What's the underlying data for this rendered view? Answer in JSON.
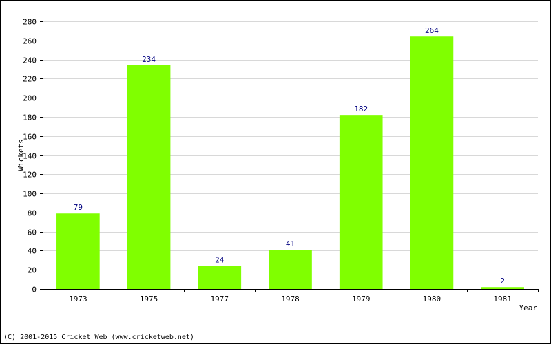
{
  "chart_data": {
    "type": "bar",
    "categories": [
      "1973",
      "1975",
      "1977",
      "1978",
      "1979",
      "1980",
      "1981"
    ],
    "values": [
      79,
      234,
      24,
      41,
      182,
      264,
      2
    ],
    "data_labels": [
      "79",
      "234",
      "24",
      "41",
      "182",
      "264",
      "2"
    ],
    "title": "",
    "xlabel": "Year",
    "ylabel": "Wickets",
    "ylim": [
      0,
      280
    ],
    "yticks": [
      "0",
      "20",
      "40",
      "60",
      "80",
      "100",
      "120",
      "140",
      "160",
      "180",
      "200",
      "220",
      "240",
      "260",
      "280"
    ],
    "grid": true,
    "legend": "none",
    "bar_color": "#80ff00",
    "label_color": "#000080"
  },
  "footer": {
    "copyright": "(C) 2001-2015 Cricket Web (www.cricketweb.net)"
  }
}
